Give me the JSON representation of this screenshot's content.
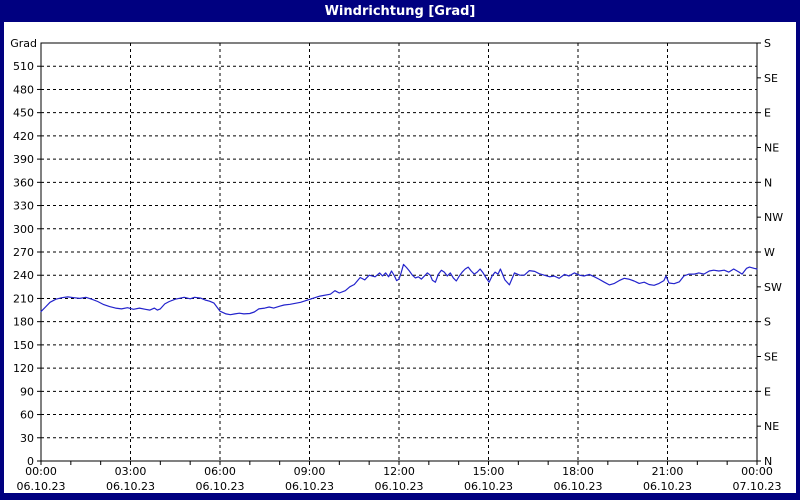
{
  "window": {
    "title": "Windrichtung [Grad]"
  },
  "colors": {
    "frame": "#000080",
    "title_text": "#ffffff",
    "panel": "#ffffff",
    "plot_border": "#000000",
    "grid": "#000000",
    "tick_text": "#000000",
    "line": "#2323cc"
  },
  "chart_data": {
    "type": "line",
    "title": "Windrichtung [Grad]",
    "ylabel_left": "Grad",
    "ylim": [
      0,
      540
    ],
    "y_left_tick_interval": 30,
    "y_left_ticks": [
      0,
      30,
      60,
      90,
      120,
      150,
      180,
      210,
      240,
      270,
      300,
      330,
      360,
      390,
      420,
      450,
      480,
      510
    ],
    "y_right_ticks": [
      {
        "deg": 540,
        "label": "S"
      },
      {
        "deg": 495,
        "label": "SE"
      },
      {
        "deg": 450,
        "label": "E"
      },
      {
        "deg": 405,
        "label": "NE"
      },
      {
        "deg": 360,
        "label": "N"
      },
      {
        "deg": 315,
        "label": "NW"
      },
      {
        "deg": 270,
        "label": "W"
      },
      {
        "deg": 225,
        "label": "SW"
      },
      {
        "deg": 180,
        "label": "S"
      },
      {
        "deg": 135,
        "label": "SE"
      },
      {
        "deg": 90,
        "label": "E"
      },
      {
        "deg": 45,
        "label": "NE"
      },
      {
        "deg": 0,
        "label": "N"
      }
    ],
    "xlim_hours": [
      0,
      24
    ],
    "x_minor_tick_interval_hours": 1,
    "x_major_ticks": [
      {
        "hour": 0,
        "time": "00:00",
        "date": "06.10.23"
      },
      {
        "hour": 3,
        "time": "03:00",
        "date": "06.10.23"
      },
      {
        "hour": 6,
        "time": "06:00",
        "date": "06.10.23"
      },
      {
        "hour": 9,
        "time": "09:00",
        "date": "06.10.23"
      },
      {
        "hour": 12,
        "time": "12:00",
        "date": "06.10.23"
      },
      {
        "hour": 15,
        "time": "15:00",
        "date": "06.10.23"
      },
      {
        "hour": 18,
        "time": "18:00",
        "date": "06.10.23"
      },
      {
        "hour": 21,
        "time": "21:00",
        "date": "06.10.23"
      },
      {
        "hour": 24,
        "time": "00:00",
        "date": "07.10.23"
      }
    ],
    "grid": "dashed",
    "legend": "none",
    "series": [
      {
        "name": "Windrichtung",
        "unit": "Grad",
        "color": "#2323cc",
        "points": [
          [
            0,
            193
          ],
          [
            0.15,
            199
          ],
          [
            0.3,
            205
          ],
          [
            0.5,
            209
          ],
          [
            0.7,
            211
          ],
          [
            0.9,
            212
          ],
          [
            1.1,
            211
          ],
          [
            1.3,
            210
          ],
          [
            1.5,
            211.5
          ],
          [
            1.7,
            209
          ],
          [
            1.9,
            206
          ],
          [
            2.1,
            202
          ],
          [
            2.3,
            199.5
          ],
          [
            2.5,
            197.5
          ],
          [
            2.7,
            196.5
          ],
          [
            2.9,
            198
          ],
          [
            3.1,
            196
          ],
          [
            3.3,
            197.5
          ],
          [
            3.5,
            196
          ],
          [
            3.65,
            195
          ],
          [
            3.8,
            197.5
          ],
          [
            3.9,
            195
          ],
          [
            4.0,
            196.5
          ],
          [
            4.15,
            203
          ],
          [
            4.3,
            206
          ],
          [
            4.5,
            209
          ],
          [
            4.8,
            211.5
          ],
          [
            5.0,
            209.5
          ],
          [
            5.15,
            211.5
          ],
          [
            5.35,
            210.5
          ],
          [
            5.5,
            208
          ],
          [
            5.65,
            206.5
          ],
          [
            5.8,
            204
          ],
          [
            6.0,
            193.5
          ],
          [
            6.2,
            190
          ],
          [
            6.35,
            189
          ],
          [
            6.5,
            190
          ],
          [
            6.65,
            191
          ],
          [
            6.8,
            190
          ],
          [
            7.0,
            190.5
          ],
          [
            7.15,
            192.5
          ],
          [
            7.3,
            196.5
          ],
          [
            7.5,
            197.5
          ],
          [
            7.65,
            199
          ],
          [
            7.8,
            197.5
          ],
          [
            8.0,
            200
          ],
          [
            8.15,
            201.5
          ],
          [
            8.35,
            202.5
          ],
          [
            8.7,
            205
          ],
          [
            9.1,
            210
          ],
          [
            9.35,
            213
          ],
          [
            9.7,
            215.5
          ],
          [
            9.85,
            220
          ],
          [
            10.0,
            217
          ],
          [
            10.2,
            220
          ],
          [
            10.35,
            225
          ],
          [
            10.5,
            228
          ],
          [
            10.7,
            237
          ],
          [
            10.85,
            234
          ],
          [
            11.0,
            240
          ],
          [
            11.2,
            238
          ],
          [
            11.35,
            243
          ],
          [
            11.45,
            239
          ],
          [
            11.55,
            243
          ],
          [
            11.65,
            238
          ],
          [
            11.75,
            245.5
          ],
          [
            11.85,
            239
          ],
          [
            11.92,
            233
          ],
          [
            12.0,
            235
          ],
          [
            12.07,
            243
          ],
          [
            12.15,
            254
          ],
          [
            12.25,
            250
          ],
          [
            12.35,
            245.5
          ],
          [
            12.45,
            240
          ],
          [
            12.55,
            236.5
          ],
          [
            12.65,
            238
          ],
          [
            12.75,
            235
          ],
          [
            12.85,
            239
          ],
          [
            12.95,
            243
          ],
          [
            13.05,
            240
          ],
          [
            13.12,
            233.5
          ],
          [
            13.22,
            231
          ],
          [
            13.32,
            241.5
          ],
          [
            13.42,
            246.5
          ],
          [
            13.52,
            244
          ],
          [
            13.62,
            239
          ],
          [
            13.72,
            243
          ],
          [
            13.82,
            236.5
          ],
          [
            13.92,
            232.5
          ],
          [
            14.02,
            239
          ],
          [
            14.12,
            244
          ],
          [
            14.22,
            248
          ],
          [
            14.32,
            250.5
          ],
          [
            14.42,
            245.5
          ],
          [
            14.52,
            241.5
          ],
          [
            14.62,
            244
          ],
          [
            14.72,
            248
          ],
          [
            14.82,
            243
          ],
          [
            14.92,
            236.5
          ],
          [
            15.02,
            231
          ],
          [
            15.12,
            239
          ],
          [
            15.22,
            244
          ],
          [
            15.32,
            241.5
          ],
          [
            15.4,
            248
          ],
          [
            15.55,
            234
          ],
          [
            15.7,
            227.5
          ],
          [
            15.87,
            243
          ],
          [
            16.05,
            240
          ],
          [
            16.2,
            240
          ],
          [
            16.37,
            246
          ],
          [
            16.55,
            245
          ],
          [
            16.7,
            242
          ],
          [
            16.87,
            240
          ],
          [
            17.05,
            238
          ],
          [
            17.2,
            239
          ],
          [
            17.37,
            236
          ],
          [
            17.55,
            241
          ],
          [
            17.7,
            239
          ],
          [
            17.88,
            243
          ],
          [
            18.05,
            240
          ],
          [
            18.2,
            239
          ],
          [
            18.38,
            241
          ],
          [
            18.55,
            238
          ],
          [
            18.7,
            235
          ],
          [
            18.88,
            231
          ],
          [
            19.05,
            227.5
          ],
          [
            19.22,
            229.5
          ],
          [
            19.38,
            233
          ],
          [
            19.55,
            236
          ],
          [
            19.7,
            235
          ],
          [
            19.88,
            232.5
          ],
          [
            20.05,
            229.5
          ],
          [
            20.22,
            231
          ],
          [
            20.38,
            228
          ],
          [
            20.55,
            227
          ],
          [
            20.72,
            229.5
          ],
          [
            20.88,
            233
          ],
          [
            20.95,
            239
          ],
          [
            21.05,
            230
          ],
          [
            21.22,
            229
          ],
          [
            21.4,
            231.5
          ],
          [
            21.55,
            239
          ],
          [
            21.72,
            241.5
          ],
          [
            21.9,
            241.5
          ],
          [
            22.05,
            243
          ],
          [
            22.22,
            241.5
          ],
          [
            22.4,
            245.5
          ],
          [
            22.55,
            246.5
          ],
          [
            22.72,
            245.5
          ],
          [
            22.9,
            246.5
          ],
          [
            23.05,
            244
          ],
          [
            23.22,
            248
          ],
          [
            23.4,
            244
          ],
          [
            23.5,
            241.5
          ],
          [
            23.65,
            249
          ],
          [
            23.75,
            250.5
          ],
          [
            23.9,
            249
          ],
          [
            24.0,
            248
          ]
        ]
      }
    ]
  }
}
